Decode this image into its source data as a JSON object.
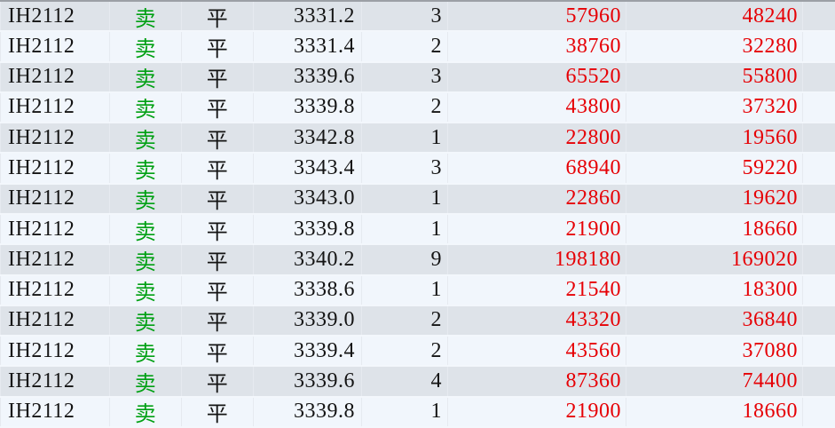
{
  "colors": {
    "row_odd_bg": "#dee3e9",
    "row_even_bg": "#f1f6fc",
    "divider": "#e6eaf0",
    "row_separator": "#f3f7fc",
    "top_border": "#9ca0a6",
    "text_primary": "#141414",
    "direction_sell": "#00a013",
    "amount_red": "#e60005"
  },
  "table": {
    "rows": [
      {
        "contract": "IH2112",
        "direction": "卖",
        "offset": "平",
        "price": "3331.2",
        "volume": "3",
        "turnover": "57960",
        "amount": "48240"
      },
      {
        "contract": "IH2112",
        "direction": "卖",
        "offset": "平",
        "price": "3331.4",
        "volume": "2",
        "turnover": "38760",
        "amount": "32280"
      },
      {
        "contract": "IH2112",
        "direction": "卖",
        "offset": "平",
        "price": "3339.6",
        "volume": "3",
        "turnover": "65520",
        "amount": "55800"
      },
      {
        "contract": "IH2112",
        "direction": "卖",
        "offset": "平",
        "price": "3339.8",
        "volume": "2",
        "turnover": "43800",
        "amount": "37320"
      },
      {
        "contract": "IH2112",
        "direction": "卖",
        "offset": "平",
        "price": "3342.8",
        "volume": "1",
        "turnover": "22800",
        "amount": "19560"
      },
      {
        "contract": "IH2112",
        "direction": "卖",
        "offset": "平",
        "price": "3343.4",
        "volume": "3",
        "turnover": "68940",
        "amount": "59220"
      },
      {
        "contract": "IH2112",
        "direction": "卖",
        "offset": "平",
        "price": "3343.0",
        "volume": "1",
        "turnover": "22860",
        "amount": "19620"
      },
      {
        "contract": "IH2112",
        "direction": "卖",
        "offset": "平",
        "price": "3339.8",
        "volume": "1",
        "turnover": "21900",
        "amount": "18660"
      },
      {
        "contract": "IH2112",
        "direction": "卖",
        "offset": "平",
        "price": "3340.2",
        "volume": "9",
        "turnover": "198180",
        "amount": "169020"
      },
      {
        "contract": "IH2112",
        "direction": "卖",
        "offset": "平",
        "price": "3338.6",
        "volume": "1",
        "turnover": "21540",
        "amount": "18300"
      },
      {
        "contract": "IH2112",
        "direction": "卖",
        "offset": "平",
        "price": "3339.0",
        "volume": "2",
        "turnover": "43320",
        "amount": "36840"
      },
      {
        "contract": "IH2112",
        "direction": "卖",
        "offset": "平",
        "price": "3339.4",
        "volume": "2",
        "turnover": "43560",
        "amount": "37080"
      },
      {
        "contract": "IH2112",
        "direction": "卖",
        "offset": "平",
        "price": "3339.6",
        "volume": "4",
        "turnover": "87360",
        "amount": "74400"
      },
      {
        "contract": "IH2112",
        "direction": "卖",
        "offset": "平",
        "price": "3339.8",
        "volume": "1",
        "turnover": "21900",
        "amount": "18660"
      }
    ]
  }
}
